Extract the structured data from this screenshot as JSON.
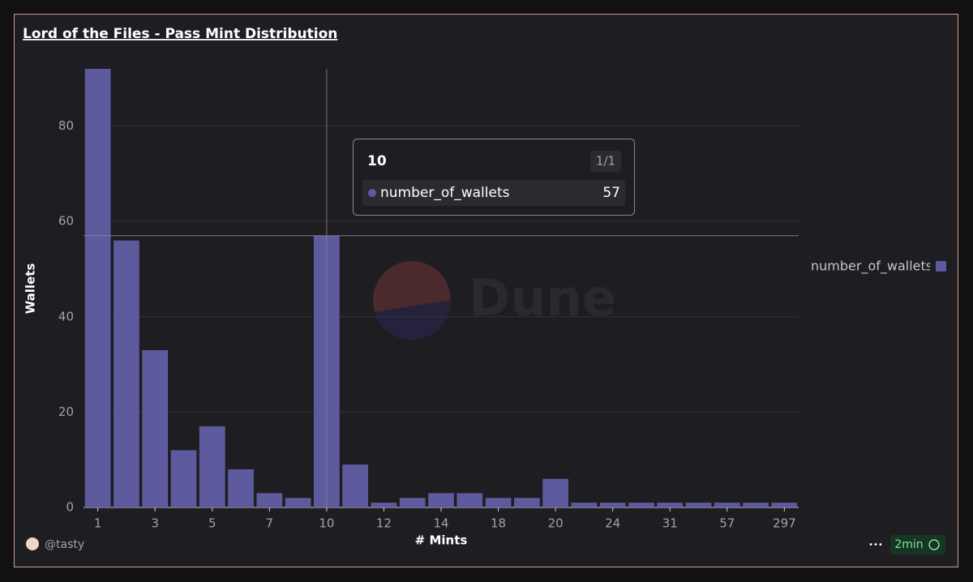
{
  "chart_data": {
    "type": "bar",
    "title": "Lord of the Files - Pass Mint Distribution",
    "x_label": "# Mints",
    "y_label": "Wallets",
    "categories": [
      "1",
      null,
      "3",
      null,
      "5",
      null,
      "7",
      null,
      "10",
      null,
      "12",
      null,
      "14",
      null,
      "18",
      null,
      "20",
      null,
      "24",
      null,
      "31",
      null,
      "57",
      null,
      "297"
    ],
    "series": [
      {
        "name": "number_of_wallets",
        "color": "#5e5a9e",
        "values": [
          92,
          56,
          33,
          12,
          17,
          8,
          3,
          2,
          57,
          9,
          1,
          2,
          3,
          3,
          2,
          2,
          6,
          1,
          1,
          1,
          1,
          1,
          1,
          1,
          1
        ]
      }
    ],
    "ylim": [
      0,
      92
    ],
    "yticks": [
      0,
      20,
      40,
      60,
      80
    ],
    "grid": true,
    "legend": "right",
    "tooltip": {
      "title": "10",
      "counter": "1/1",
      "series": "number_of_wallets",
      "value": 57
    },
    "watermark": "Dune"
  },
  "footer": {
    "author": "@tasty",
    "menu": "•••",
    "refresh": "2min"
  }
}
